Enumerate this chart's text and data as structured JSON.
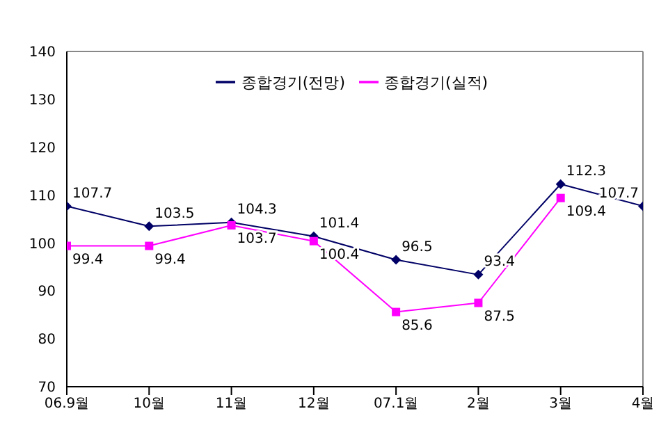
{
  "chart_data": {
    "type": "line",
    "categories": [
      "06.9월",
      "10월",
      "11월",
      "12월",
      "07.1월",
      "2월",
      "3월",
      "4월"
    ],
    "series": [
      {
        "name": "종합경기(전망)",
        "color": "#000066",
        "values": [
          107.7,
          103.5,
          104.3,
          101.4,
          96.5,
          93.4,
          112.3,
          107.7
        ],
        "marker": "diamond"
      },
      {
        "name": "종합경기(실적)",
        "color": "#ff00ff",
        "values": [
          99.4,
          99.4,
          103.7,
          100.4,
          85.6,
          87.5,
          109.4,
          null
        ],
        "marker": "square"
      }
    ],
    "ylim": [
      70,
      140
    ],
    "yticks": [
      70,
      80,
      90,
      100,
      110,
      120,
      130,
      140
    ],
    "grid": false,
    "legend": "top",
    "data_labels": true
  }
}
